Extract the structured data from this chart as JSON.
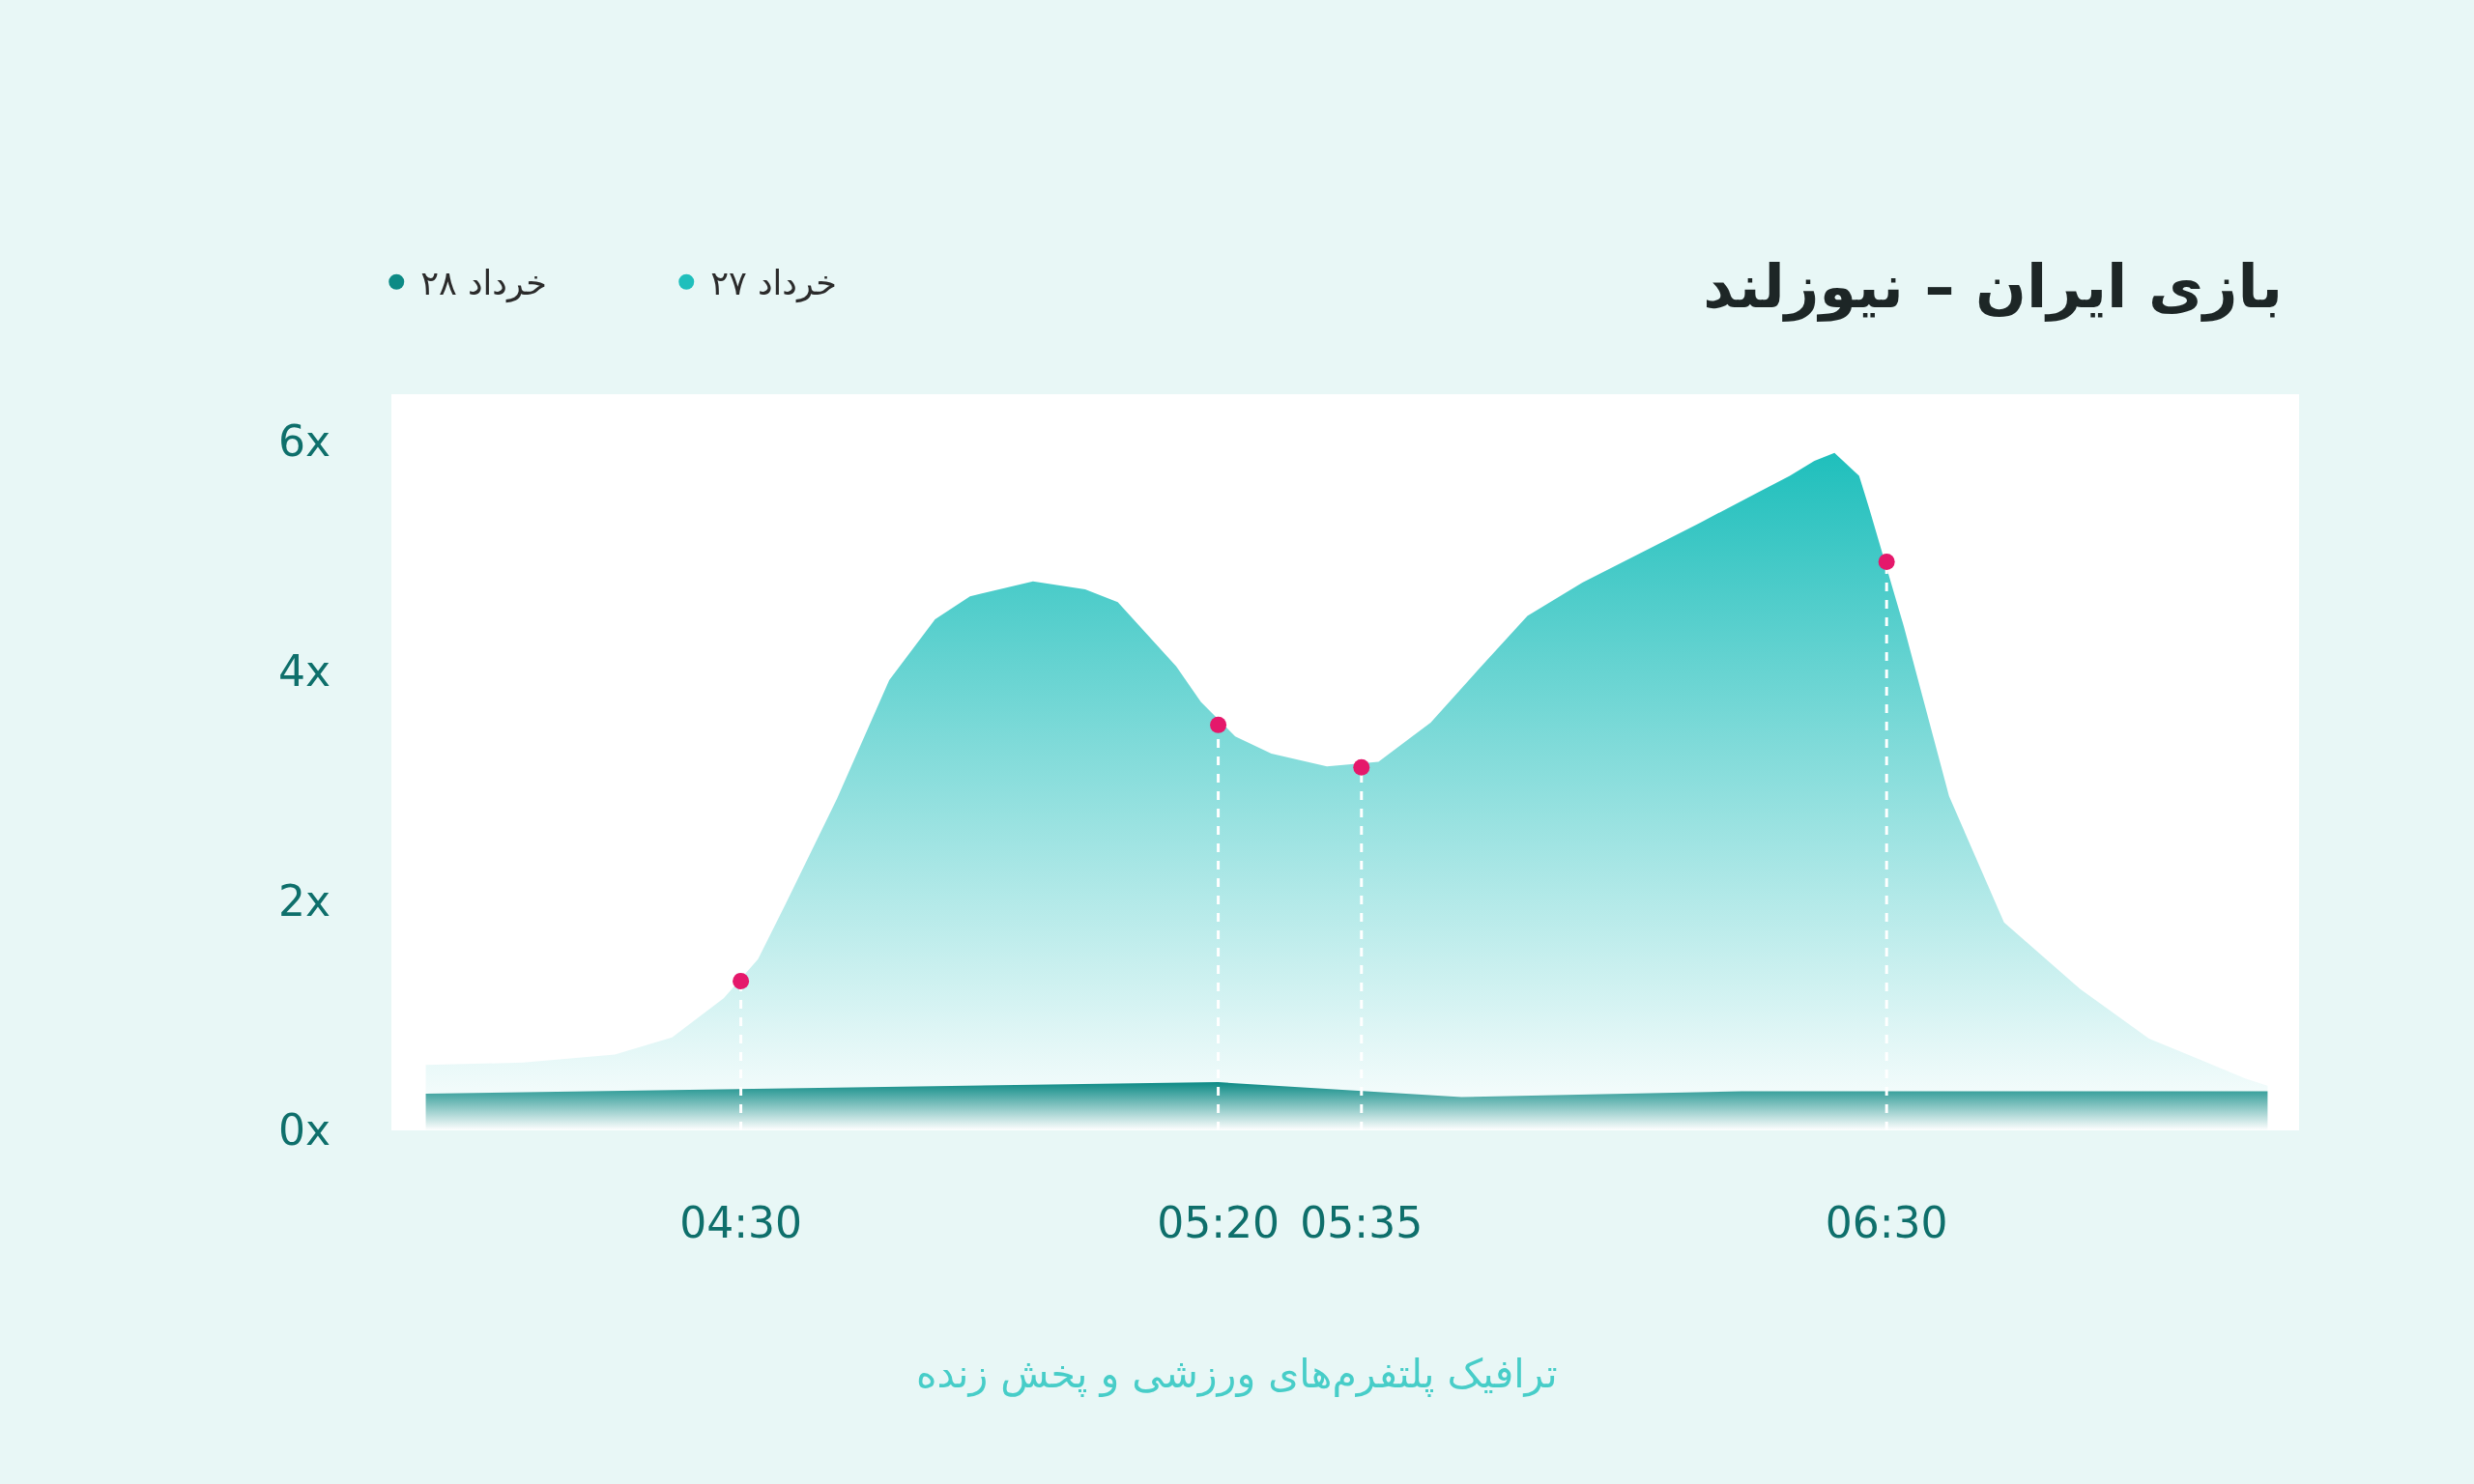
{
  "chart_data": {
    "type": "area",
    "title": "بازی ایران – نیوزلند",
    "annotations": [
      "ترافیک پلتفرم‌های ورزشی و پخش زنده"
    ],
    "xlim": [
      3.89,
      7.22
    ],
    "xticks": [
      {
        "value": 4.5,
        "label": "04:30"
      },
      {
        "value": 5.3333,
        "label": "05:20"
      },
      {
        "value": 5.5833,
        "label": "05:35"
      },
      {
        "value": 6.5,
        "label": "06:30"
      }
    ],
    "ylim": [
      0,
      6.41
    ],
    "yticks": [
      {
        "value": 0,
        "label": "0x"
      },
      {
        "value": 2,
        "label": "2x"
      },
      {
        "value": 4,
        "label": "4x"
      },
      {
        "value": 6,
        "label": "6x"
      }
    ],
    "legend": "top left",
    "series": [
      {
        "name": "۲۷ خرداد",
        "color": "#1fbfbc",
        "x": [
          3.95,
          4.12,
          4.28,
          4.38,
          4.47,
          4.53,
          4.577,
          4.668,
          4.759,
          4.839,
          4.9,
          5.01,
          5.101,
          5.158,
          5.26,
          5.303,
          5.363,
          5.426,
          5.523,
          5.613,
          5.704,
          5.787,
          5.873,
          5.969,
          6.174,
          6.331,
          6.374,
          6.409,
          6.452,
          6.47,
          6.53,
          6.609,
          6.705,
          6.838,
          6.958,
          7.127,
          7.165
        ],
        "values": [
          0.57,
          0.59,
          0.66,
          0.81,
          1.15,
          1.49,
          1.96,
          2.89,
          3.92,
          4.45,
          4.65,
          4.78,
          4.71,
          4.6,
          4.04,
          3.73,
          3.43,
          3.28,
          3.17,
          3.21,
          3.55,
          4.01,
          4.48,
          4.77,
          5.29,
          5.7,
          5.83,
          5.9,
          5.7,
          5.41,
          4.39,
          2.91,
          1.81,
          1.23,
          0.8,
          0.45,
          0.39
        ]
      },
      {
        "name": "۲۸ خرداد",
        "color": "#0c8a85",
        "x": [
          3.95,
          5.3333,
          5.758,
          6.247,
          7.165
        ],
        "values": [
          0.32,
          0.42,
          0.29,
          0.34,
          0.34
        ]
      },
      {
        "type": "lollipop",
        "color": "#e5186b",
        "line_style": "dashed",
        "marker": "circle",
        "x": [
          4.5,
          5.3333,
          5.5833,
          6.5
        ],
        "values": [
          1.3,
          3.53,
          3.16,
          4.95
        ]
      }
    ]
  }
}
